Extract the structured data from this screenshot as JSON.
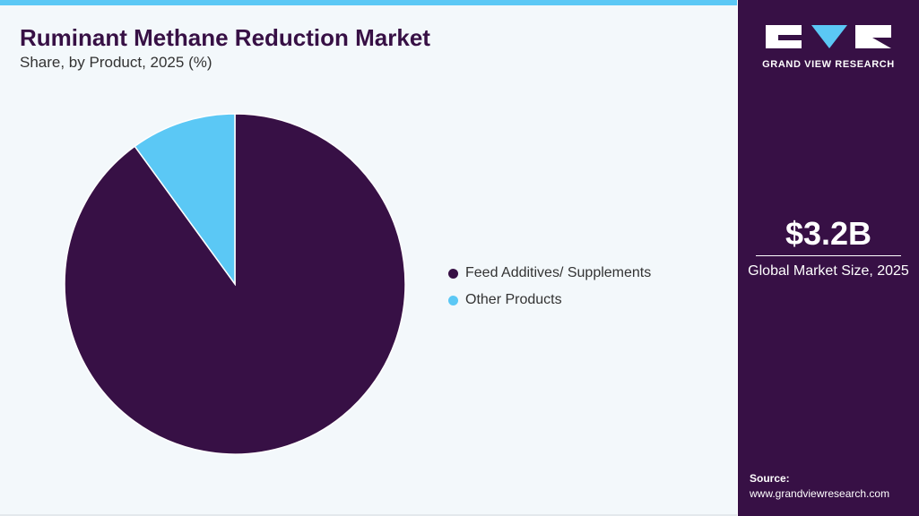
{
  "chart_data": {
    "type": "pie",
    "title": "Ruminant Methane Reduction Market",
    "subtitle": "Share, by Product, 2025 (%)",
    "categories": [
      "Feed Additives/ Supplements",
      "Other Products"
    ],
    "values": [
      90,
      10
    ],
    "colors": [
      "#371045",
      "#5bc8f5"
    ]
  },
  "sidebar": {
    "logo": "GRAND VIEW RESEARCH",
    "market_size": "$3.2B",
    "market_size_label": "Global Market Size, 2025",
    "source_label": "Source:",
    "source_url": "www.grandviewresearch.com"
  }
}
